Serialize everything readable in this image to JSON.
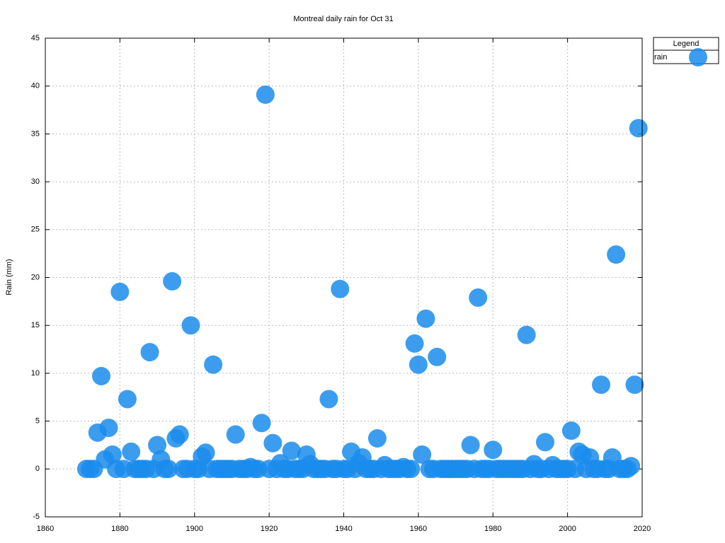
{
  "chart_data": {
    "type": "scatter",
    "title": "Montreal daily rain for Oct 31",
    "y_label": "Rain (mm)",
    "legend_title": "Legend",
    "legend_position": "outside-top-right",
    "grid": true,
    "x": [
      1871,
      1872,
      1873,
      1874,
      1875,
      1876,
      1877,
      1878,
      1879,
      1880,
      1881,
      1882,
      1883,
      1884,
      1885,
      1886,
      1887,
      1888,
      1889,
      1890,
      1891,
      1892,
      1893,
      1894,
      1895,
      1896,
      1897,
      1898,
      1899,
      1900,
      1901,
      1902,
      1903,
      1904,
      1905,
      1906,
      1907,
      1908,
      1909,
      1910,
      1911,
      1912,
      1913,
      1914,
      1915,
      1916,
      1917,
      1918,
      1919,
      1920,
      1921,
      1922,
      1923,
      1924,
      1925,
      1926,
      1927,
      1928,
      1929,
      1930,
      1931,
      1932,
      1933,
      1934,
      1935,
      1936,
      1937,
      1938,
      1939,
      1940,
      1941,
      1942,
      1943,
      1944,
      1945,
      1946,
      1947,
      1948,
      1949,
      1950,
      1951,
      1952,
      1953,
      1954,
      1955,
      1956,
      1957,
      1958,
      1959,
      1960,
      1961,
      1962,
      1963,
      1964,
      1965,
      1966,
      1967,
      1968,
      1969,
      1970,
      1971,
      1972,
      1973,
      1974,
      1975,
      1976,
      1977,
      1978,
      1979,
      1980,
      1981,
      1982,
      1983,
      1984,
      1985,
      1986,
      1987,
      1988,
      1989,
      1990,
      1991,
      1992,
      1993,
      1994,
      1995,
      1996,
      1997,
      1998,
      1999,
      2000,
      2001,
      2002,
      2003,
      2004,
      2005,
      2006,
      2007,
      2008,
      2009,
      2010,
      2011,
      2012,
      2013,
      2014,
      2015,
      2016,
      2017,
      2018,
      2019
    ],
    "series": [
      {
        "name": "rain",
        "color": "#1a8cec",
        "values": [
          0,
          0,
          0,
          3.8,
          9.7,
          1.0,
          4.3,
          1.5,
          0,
          18.5,
          0,
          7.3,
          1.8,
          0,
          0,
          0,
          0,
          12.2,
          0,
          2.5,
          1.0,
          0,
          0,
          19.6,
          3.2,
          3.6,
          0,
          0,
          15.0,
          0,
          0,
          1.3,
          1.7,
          0,
          10.9,
          0,
          0,
          0,
          0,
          0,
          3.6,
          0,
          0,
          0,
          0.2,
          0,
          0,
          4.8,
          39.1,
          0,
          2.7,
          0,
          0.6,
          0,
          0,
          1.9,
          0,
          0,
          0,
          1.5,
          0.5,
          0,
          0,
          0,
          0,
          7.3,
          0,
          0,
          18.8,
          0,
          0,
          1.8,
          0,
          0.6,
          1.2,
          0,
          0,
          0,
          3.2,
          0,
          0.4,
          0,
          0,
          0,
          0,
          0.2,
          0,
          0,
          13.1,
          10.9,
          1.5,
          15.7,
          0,
          0,
          11.7,
          0,
          0,
          0,
          0,
          0,
          0,
          0,
          0,
          2.5,
          0,
          17.9,
          0,
          0,
          0,
          2.0,
          0,
          0,
          0,
          0,
          0,
          0,
          0,
          0,
          14.0,
          0,
          0.5,
          0,
          0,
          2.8,
          0,
          0.4,
          0,
          0,
          0,
          0,
          4.0,
          0,
          1.8,
          1.5,
          0,
          1.2,
          0,
          0,
          8.8,
          0,
          0,
          1.2,
          22.4,
          0,
          0,
          0,
          0.3,
          8.8,
          35.6
        ]
      }
    ],
    "xlim": [
      1860,
      2020
    ],
    "xticks": [
      1860,
      1880,
      1900,
      1920,
      1940,
      1960,
      1980,
      2000,
      2020
    ],
    "ylim": [
      -5,
      45
    ],
    "yticks": [
      -5,
      0,
      5,
      10,
      15,
      20,
      25,
      30,
      35,
      40,
      45
    ]
  }
}
